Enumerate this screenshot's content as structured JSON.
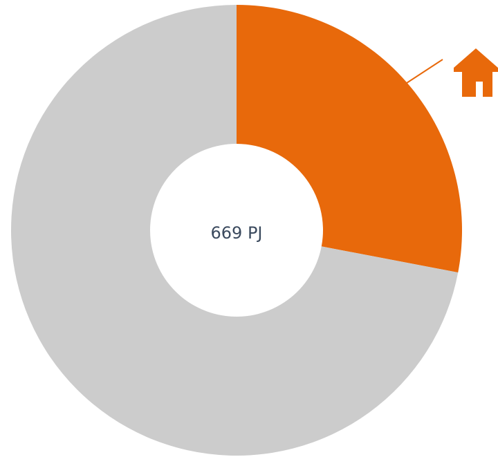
{
  "chart_data": {
    "type": "donut",
    "center_label": "669 PJ",
    "values": [
      28,
      72
    ],
    "colors": [
      "#e8690b",
      "#cccccc"
    ]
  }
}
